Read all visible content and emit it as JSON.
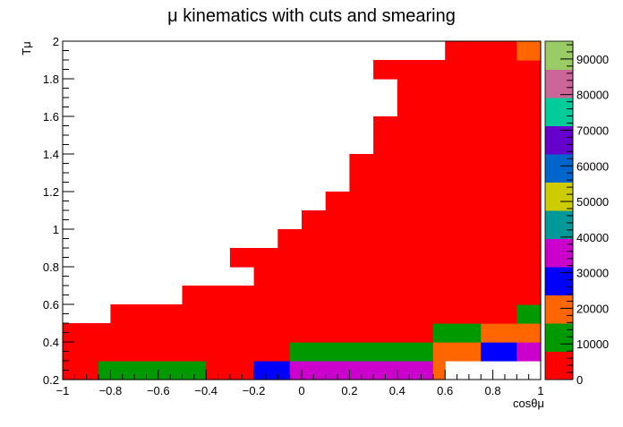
{
  "chart_data": {
    "type": "heatmap",
    "title": "μ kinematics with cuts and smearing",
    "xlabel": "cosθμ",
    "ylabel": "Tμ",
    "xlim": [
      -1,
      1
    ],
    "ylim": [
      0.2,
      2
    ],
    "x_bin_width": 0.1,
    "y_bin_width": 0.1,
    "x_ticks": [
      "−1",
      "−0.8",
      "−0.6",
      "−0.4",
      "−0.2",
      "0",
      "0.2",
      "0.4",
      "0.6",
      "0.8",
      "1"
    ],
    "y_ticks": [
      "0.2",
      "0.4",
      "0.6",
      "0.8",
      "1",
      "1.2",
      "1.4",
      "1.6",
      "1.8",
      "2"
    ],
    "z_ticks": [
      "0",
      "10000",
      "20000",
      "30000",
      "40000",
      "50000",
      "60000",
      "70000",
      "80000",
      "90000"
    ],
    "zlim": [
      0,
      95000
    ],
    "palette": [
      "#ff0000",
      "#009900",
      "#ff6600",
      "#0000ff",
      "#cc00cc",
      "#009999",
      "#cccc00",
      "#0066cc",
      "#6600cc",
      "#00cc99",
      "#cc6699",
      "#99cc66"
    ],
    "cells": [
      {
        "row": 0,
        "start_x": -1.0,
        "levels": [
          0,
          0,
          0,
          1,
          1,
          1,
          1,
          1,
          1,
          1,
          1,
          1,
          0,
          0,
          0,
          0,
          3,
          3,
          3,
          4,
          4,
          4,
          4,
          4,
          4,
          4,
          4,
          4,
          4,
          4,
          4,
          2
        ]
      },
      {
        "row": 1,
        "start_x": -1.0,
        "levels": [
          0,
          0,
          0,
          0,
          0,
          0,
          0,
          0,
          0,
          0,
          0,
          0,
          0,
          0,
          0,
          0,
          0,
          0,
          0,
          1,
          1,
          1,
          1,
          1,
          1,
          1,
          1,
          1,
          1,
          1,
          1,
          2,
          2,
          2,
          2,
          3,
          3,
          3,
          4,
          4,
          5,
          5,
          6,
          6,
          6,
          6,
          4,
          4,
          4,
          4,
          5,
          5,
          6,
          6,
          6,
          6,
          6,
          6,
          6,
          4,
          4,
          4,
          4
        ]
      },
      {
        "row": 2,
        "start_x": -1.0,
        "levels": [
          0,
          0,
          0,
          0,
          0,
          0,
          0,
          0,
          0,
          0,
          0,
          0,
          0,
          0,
          0,
          0,
          0,
          0,
          0,
          0,
          0,
          0,
          0,
          0,
          0,
          0,
          0,
          0,
          0,
          0,
          0,
          1,
          1,
          1,
          1,
          2,
          2,
          2,
          2,
          2,
          3,
          3,
          3,
          5,
          5,
          5,
          6,
          6,
          8,
          8,
          8,
          9,
          9,
          4,
          4
        ]
      },
      {
        "row": 3,
        "start_x": -0.8,
        "levels": [
          0,
          0,
          0,
          0,
          0,
          0,
          0,
          0,
          0,
          0,
          0,
          0,
          0,
          0,
          0,
          0,
          0,
          0,
          0,
          0,
          0,
          0,
          0,
          0,
          0,
          0,
          0,
          0,
          0,
          0,
          0,
          0,
          0,
          0,
          1,
          1,
          1,
          1,
          2,
          2,
          3,
          3,
          5,
          5,
          8,
          8,
          10,
          10,
          9,
          9
        ]
      },
      {
        "row": 4,
        "start_x": -0.5,
        "levels": [
          0,
          0,
          0,
          0,
          0,
          0,
          0,
          0,
          0,
          0,
          0,
          0,
          0,
          0,
          0,
          0,
          0,
          0,
          0,
          0,
          0,
          0,
          0,
          0,
          0,
          0,
          0,
          0,
          0,
          0,
          0,
          0,
          0,
          0,
          0,
          0,
          1,
          1,
          2,
          2,
          4,
          4,
          7,
          7,
          11,
          11,
          11,
          11,
          11,
          11,
          11
        ]
      },
      {
        "row": 5,
        "start_x": -0.2,
        "levels": [
          0,
          0,
          0,
          0,
          0,
          0,
          0,
          0,
          0,
          0,
          0,
          0,
          0,
          0,
          0,
          0,
          0,
          0,
          0,
          0,
          0,
          0,
          0,
          0,
          0,
          0,
          0,
          0,
          0,
          1,
          1,
          2,
          2,
          5,
          5,
          9,
          9,
          11,
          11,
          11
        ]
      },
      {
        "row": 6,
        "start_x": -0.3,
        "levels": [
          0,
          0,
          0,
          0,
          0,
          0,
          0,
          0,
          0,
          0,
          0,
          0,
          0,
          0,
          0,
          0,
          0,
          0,
          0,
          0,
          0,
          0,
          0,
          0,
          0,
          0,
          0,
          0,
          1,
          1,
          2,
          2,
          3,
          3,
          8,
          8,
          11,
          11,
          11,
          11,
          11
        ]
      },
      {
        "row": 7,
        "start_x": -0.1,
        "levels": [
          0,
          0,
          0,
          0,
          0,
          0,
          0,
          0,
          0,
          0,
          0,
          0,
          0,
          0,
          0,
          0,
          0,
          0,
          0,
          0,
          0,
          0,
          0,
          0,
          0,
          0,
          0,
          0,
          1,
          1,
          2,
          2,
          6,
          6,
          11,
          11,
          11,
          11,
          11
        ]
      },
      {
        "row": 8,
        "start_x": 0.0,
        "levels": [
          0,
          0,
          0,
          0,
          0,
          0,
          0,
          0,
          0,
          0,
          0,
          0,
          0,
          0,
          0,
          0,
          0,
          0,
          0,
          0,
          0,
          0,
          0,
          0,
          0,
          1,
          1,
          4,
          4,
          10,
          10,
          11,
          11
        ]
      },
      {
        "row": 9,
        "start_x": 0.1,
        "levels": [
          0,
          0,
          0,
          0,
          0,
          0,
          0,
          0,
          0,
          0,
          0,
          0,
          0,
          0,
          0,
          0,
          0,
          0,
          0,
          0,
          0,
          0,
          0,
          1,
          1,
          3,
          3,
          9,
          9,
          11
        ]
      },
      {
        "row": 10,
        "start_x": 0.2,
        "levels": [
          0,
          0,
          0,
          0,
          0,
          0,
          0,
          0,
          0,
          0,
          0,
          0,
          0,
          0,
          0,
          0,
          0,
          0,
          0,
          0,
          0,
          2,
          2,
          7,
          7,
          11
        ]
      },
      {
        "row": 11,
        "start_x": 0.2,
        "levels": [
          0,
          0,
          0,
          0,
          0,
          0,
          0,
          0,
          0,
          0,
          0,
          0,
          0,
          0,
          0,
          0,
          0,
          0,
          0,
          0,
          0,
          1,
          1,
          5,
          5,
          11
        ]
      },
      {
        "row": 12,
        "start_x": 0.3,
        "levels": [
          0,
          0,
          0,
          0,
          0,
          0,
          0,
          0,
          0,
          0,
          0,
          0,
          0,
          0,
          0,
          0,
          0,
          0,
          0,
          1,
          1,
          11,
          11
        ]
      },
      {
        "row": 13,
        "start_x": 0.3,
        "levels": [
          0,
          0,
          0,
          0,
          0,
          0,
          0,
          0,
          0,
          0,
          0,
          0,
          0,
          0,
          0,
          0,
          0,
          0,
          0,
          1,
          1,
          4,
          4
        ]
      },
      {
        "row": 14,
        "start_x": 0.4,
        "levels": [
          0,
          0,
          0,
          0,
          0,
          0,
          0,
          0,
          0,
          0,
          0,
          0,
          0,
          0,
          0,
          0,
          0,
          0,
          3,
          3
        ]
      },
      {
        "row": 15,
        "start_x": 0.4,
        "levels": [
          0,
          0,
          0,
          0,
          0,
          0,
          0,
          0,
          0,
          0,
          0,
          0,
          0,
          0,
          0,
          0,
          0,
          0,
          3,
          3
        ]
      },
      {
        "row": 16,
        "start_x": 0.3,
        "levels": [
          0,
          0,
          0,
          0,
          0,
          0,
          0,
          0,
          0,
          0,
          0,
          0,
          0,
          0,
          0,
          0,
          0,
          0,
          0,
          0,
          2,
          2
        ]
      },
      {
        "row": 17,
        "start_x": 0.6,
        "levels": [
          0,
          0,
          0,
          0,
          0,
          0,
          2,
          2
        ]
      }
    ]
  }
}
